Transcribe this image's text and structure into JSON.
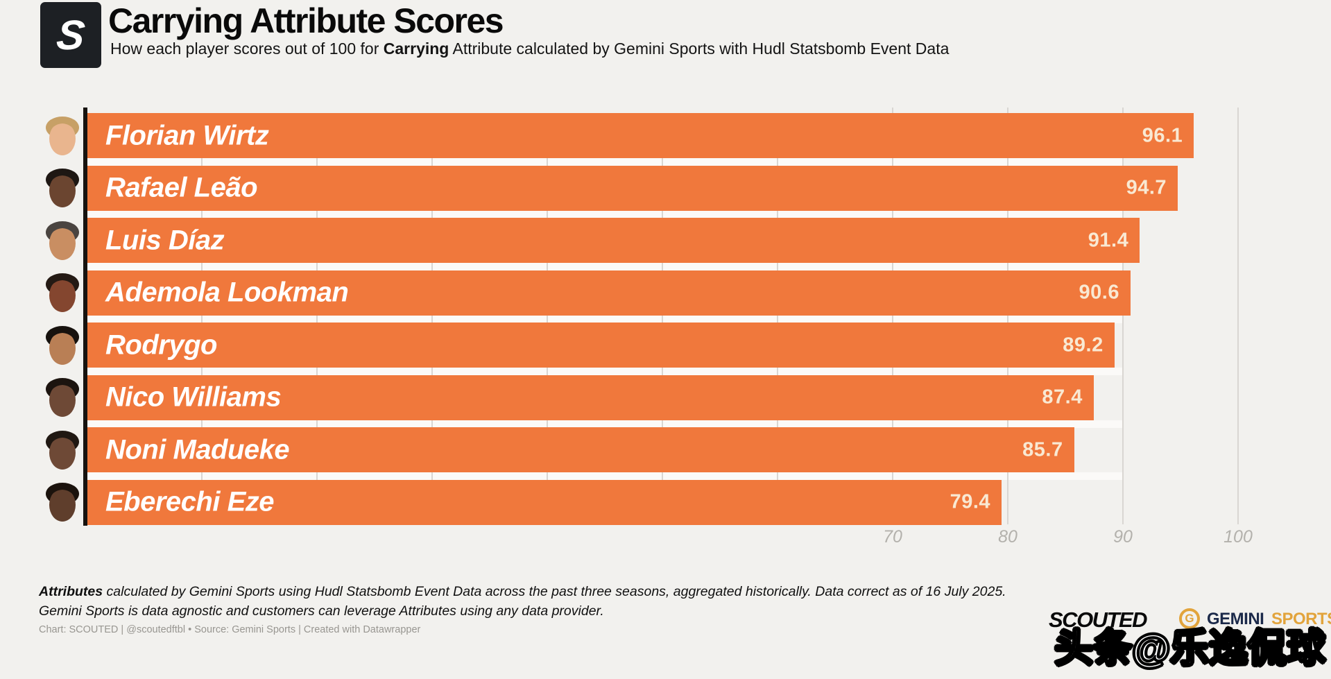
{
  "header": {
    "logo_letter": "S",
    "title": "Carrying Attribute Scores",
    "subtitle_prefix": "How each player scores out of 100 for ",
    "subtitle_bold": "Carrying",
    "subtitle_suffix": " Attribute calculated by Gemini Sports with Hudl Statsbomb Event Data"
  },
  "chart_data": {
    "type": "bar",
    "orientation": "horizontal",
    "title": "Carrying Attribute Scores",
    "subtitle": "How each player scores out of 100 for Carrying Attribute calculated by Gemini Sports with Hudl Statsbomb Event Data",
    "categories": [
      "Florian Wirtz",
      "Rafael Leão",
      "Luis Díaz",
      "Ademola Lookman",
      "Rodrygo",
      "Nico Williams",
      "Noni Madueke",
      "Eberechi Eze"
    ],
    "values": [
      96.1,
      94.7,
      91.4,
      90.6,
      89.2,
      87.4,
      85.7,
      79.4
    ],
    "xlabel": "",
    "ylabel": "",
    "xlim": [
      0,
      108
    ],
    "x_ticks": [
      70,
      80,
      90,
      100
    ],
    "grid": "vertical-light",
    "legend": "none",
    "bar_color": "#F0783C",
    "value_label_color": "#F9E9D3"
  },
  "players": [
    {
      "name": "Florian Wirtz",
      "value": 96.1,
      "skin": "#E9B58E",
      "hair": "#C7A066"
    },
    {
      "name": "Rafael Leão",
      "value": 94.7,
      "skin": "#6B4530",
      "hair": "#1E1713"
    },
    {
      "name": "Luis Díaz",
      "value": 91.4,
      "skin": "#C98E62",
      "hair": "#4A4440"
    },
    {
      "name": "Ademola Lookman",
      "value": 90.6,
      "skin": "#84462F",
      "hair": "#241A14"
    },
    {
      "name": "Rodrygo",
      "value": 89.2,
      "skin": "#B97F55",
      "hair": "#17120E"
    },
    {
      "name": "Nico Williams",
      "value": 87.4,
      "skin": "#6E4936",
      "hair": "#1C140F"
    },
    {
      "name": "Noni Madueke",
      "value": 85.7,
      "skin": "#6E4936",
      "hair": "#201812"
    },
    {
      "name": "Eberechi Eze",
      "value": 79.4,
      "skin": "#5F3E2C",
      "hair": "#1B130D"
    }
  ],
  "axis": {
    "tick_70": "70",
    "tick_80": "80",
    "tick_90": "90",
    "tick_100": "100"
  },
  "footer": {
    "line1_bold": "Attributes",
    "line1_rest": " calculated by Gemini Sports using Hudl Statsbomb Event Data across the past three seasons, aggregated historically. Data correct as of 16 July 2025.",
    "line2": "Gemini Sports is data agnostic and customers can leverage Attributes using any data provider."
  },
  "credits": "Chart: SCOUTED | @scoutedftbl • Source: Gemini Sports | Created with Datawrapper",
  "brand": {
    "scouted": "SCOUTED",
    "gemini_g": "G",
    "gemini_name": "GEMINI",
    "gemini_sports": "SPORTS"
  },
  "watermark": "头条@乐逸侃球",
  "colors": {
    "background": "#F2F1EE",
    "bar": "#F0783C",
    "bar_value_label": "#F9E9D3",
    "axis_line": "#17130F",
    "gridline": "#D9D6D2",
    "tick_label": "#B3B1AC",
    "logo_bg": "#1D2024",
    "gemini_navy": "#1C2A4A",
    "gemini_gold": "#E2A43C"
  }
}
